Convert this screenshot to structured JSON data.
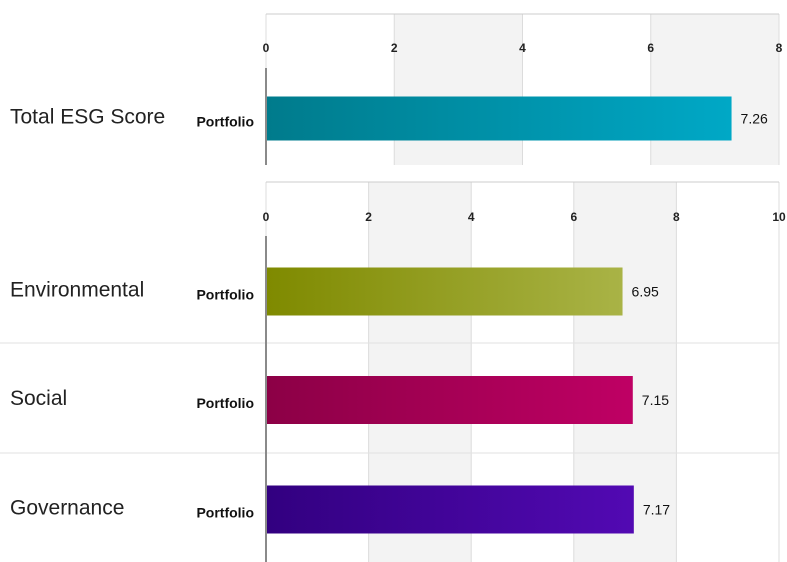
{
  "chart_data": [
    {
      "type": "bar",
      "orientation": "horizontal",
      "categories": [
        "Total ESG Score"
      ],
      "series": [
        {
          "name": "Portfolio",
          "values": [
            7.26
          ]
        }
      ],
      "xlim": [
        0,
        8
      ],
      "ticks": [
        "0",
        "2",
        "4",
        "6",
        "8"
      ],
      "value_labels": [
        "7.26"
      ],
      "colors": [
        [
          "#007b8c",
          "#00a8c6"
        ]
      ],
      "grid": true
    },
    {
      "type": "bar",
      "orientation": "horizontal",
      "categories": [
        "Environmental",
        "Social",
        "Governance"
      ],
      "series": [
        {
          "name": "Portfolio",
          "values": [
            6.95,
            7.15,
            7.17
          ]
        }
      ],
      "xlim": [
        0,
        10
      ],
      "ticks": [
        "0",
        "2",
        "4",
        "6",
        "8",
        "10"
      ],
      "value_labels": [
        "6.95",
        "7.15",
        "7.17"
      ],
      "colors": [
        [
          "#7f8a00",
          "#a9b346"
        ],
        [
          "#8c0046",
          "#bf0064"
        ],
        [
          "#320080",
          "#5209b3"
        ]
      ],
      "grid": true
    }
  ]
}
